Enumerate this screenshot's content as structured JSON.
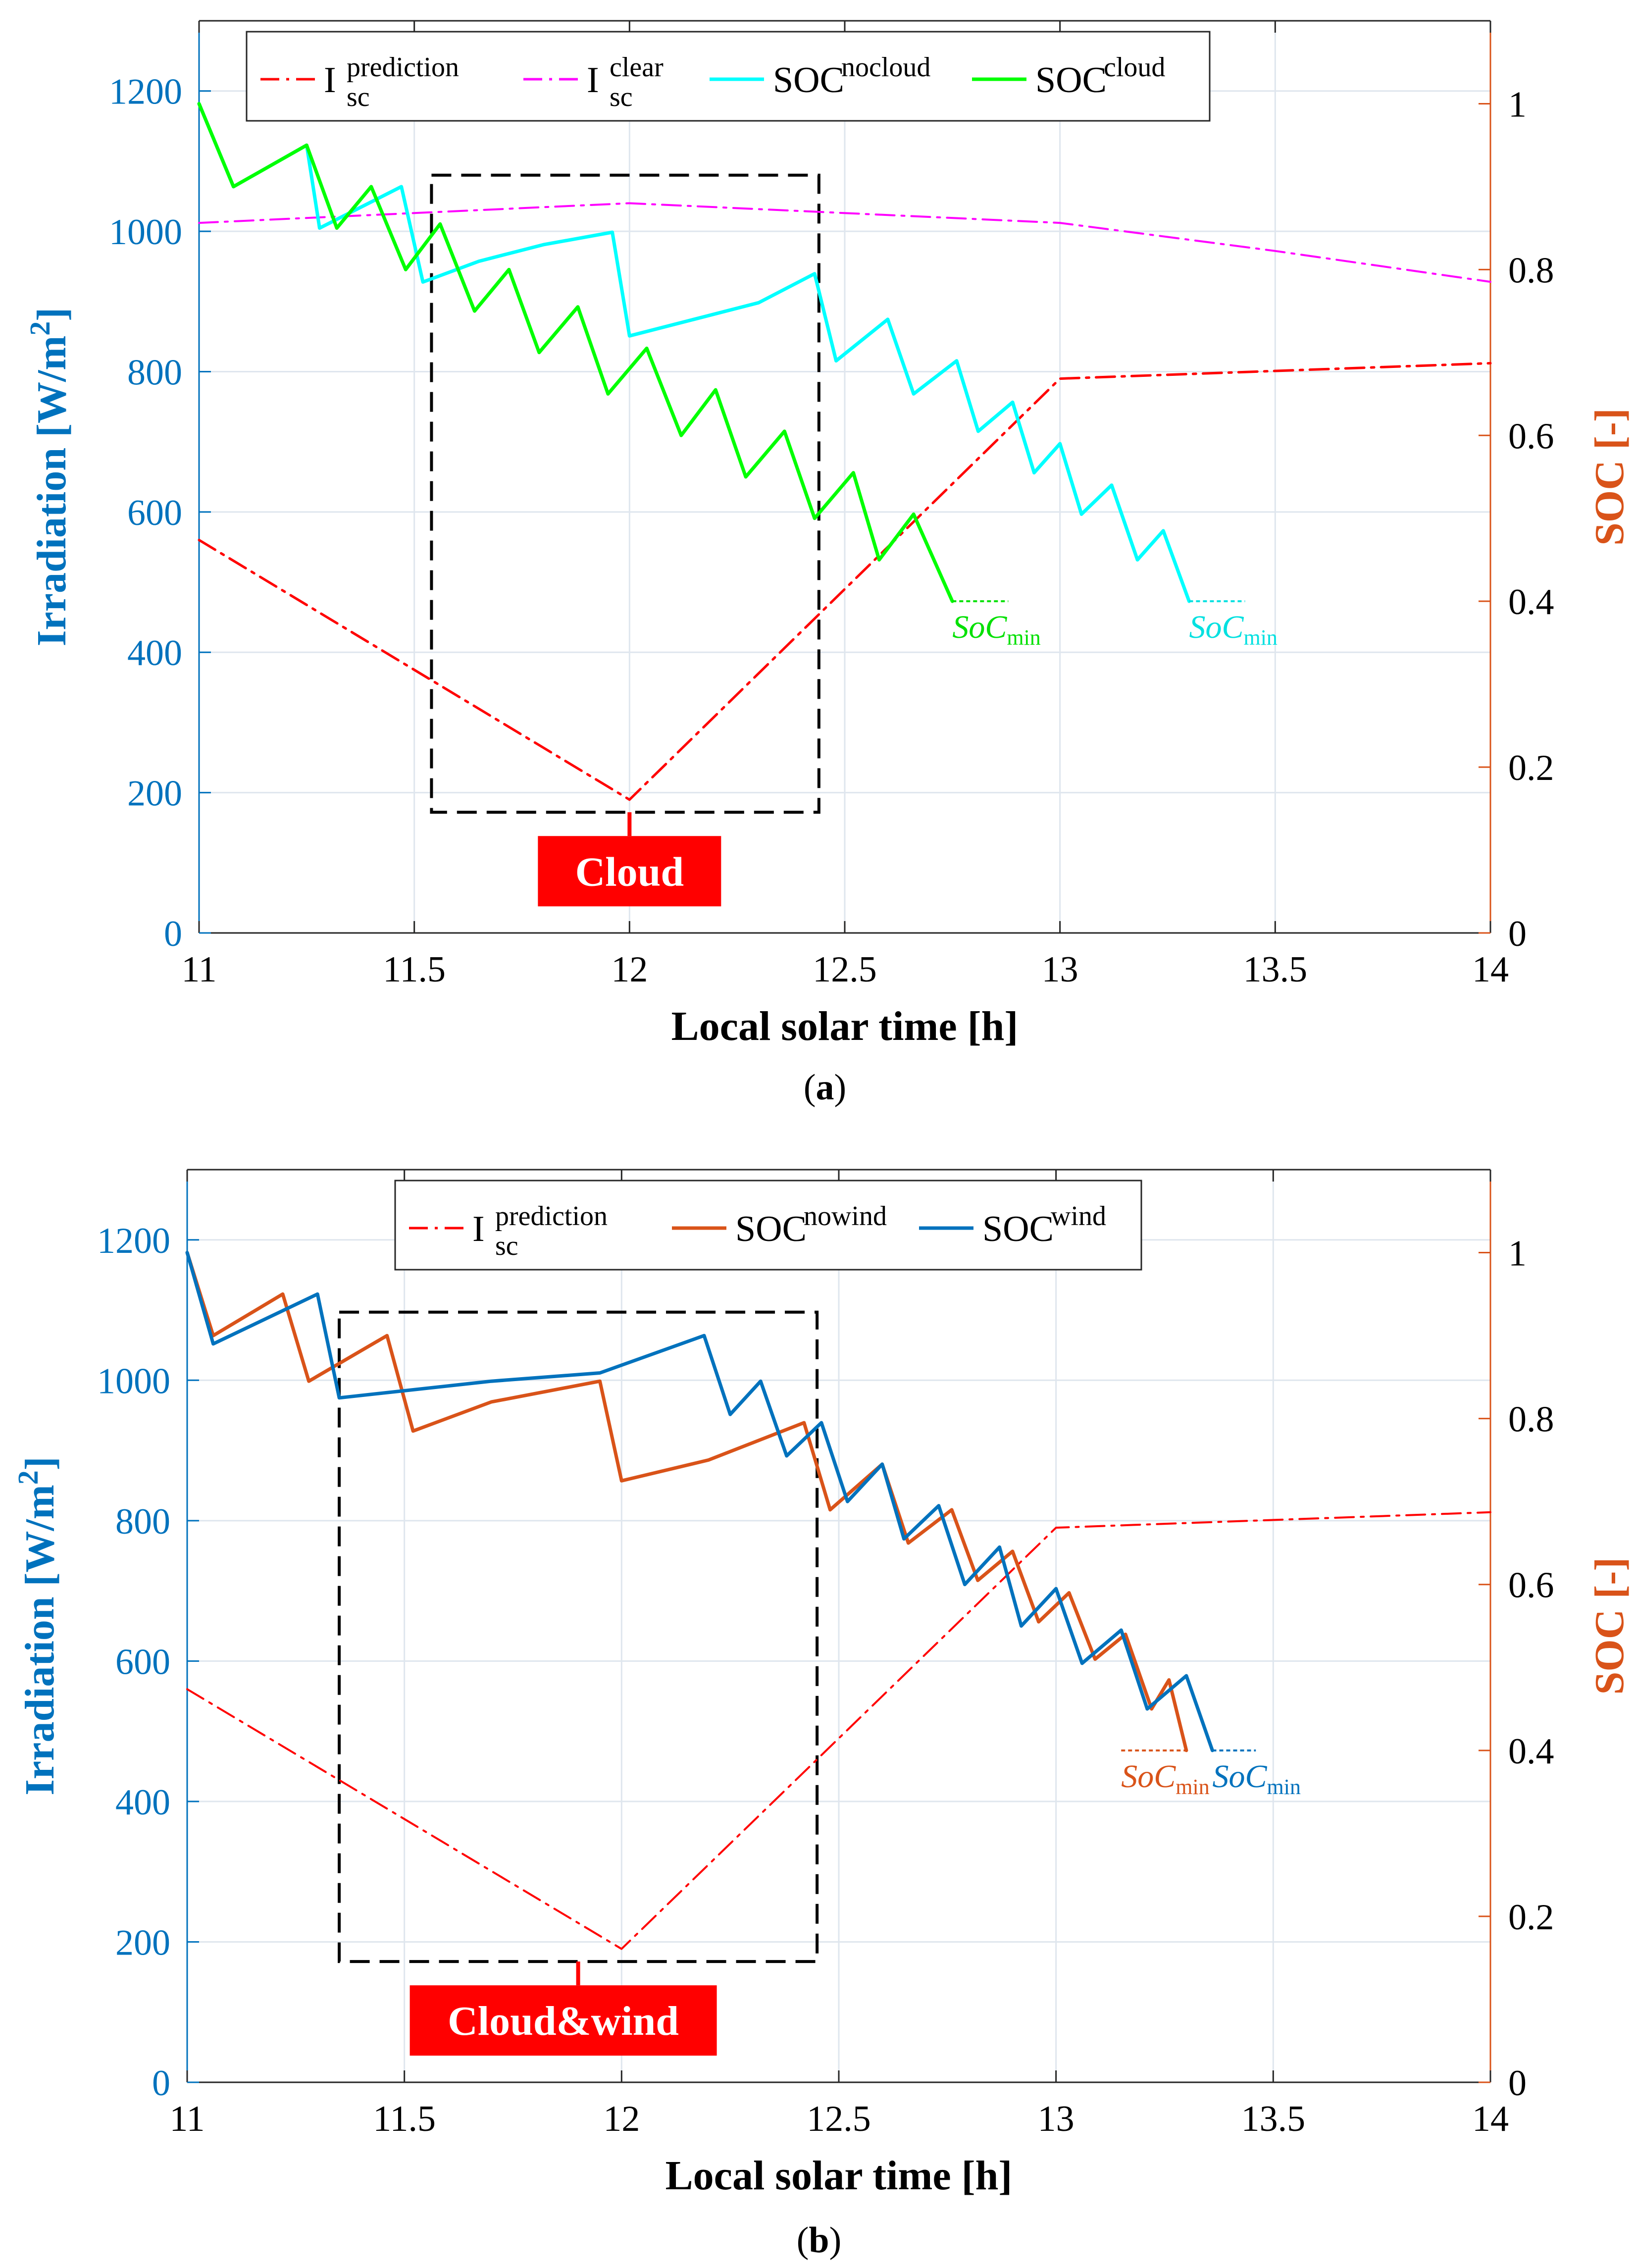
{
  "chart_data": [
    {
      "id": "a",
      "type": "line",
      "caption": "a",
      "xlabel": "Local solar time  [h]",
      "ylabel_left": "Irradiation [W/m",
      "ylabel_left_sup": "2",
      "ylabel_left_tail": "]",
      "ylabel_right": "SOC [-]",
      "xlim": [
        11,
        14
      ],
      "ylim_left": [
        0,
        1300
      ],
      "ylim_right": [
        0,
        1.1
      ],
      "xticks": [
        11,
        11.5,
        12,
        12.5,
        13,
        13.5,
        14
      ],
      "xtick_labels": [
        "11",
        "11.5",
        "12",
        "12.5",
        "13",
        "13.5",
        "14"
      ],
      "yticks_left": [
        0,
        200,
        400,
        600,
        800,
        1000,
        1200
      ],
      "ytick_left_labels": [
        "0",
        "200",
        "400",
        "600",
        "800",
        "1000",
        "1200"
      ],
      "yticks_right": [
        0,
        0.2,
        0.4,
        0.6,
        0.8,
        1
      ],
      "ytick_right_labels": [
        "0",
        "0.2",
        "0.4",
        "0.6",
        "0.8",
        "1"
      ],
      "colors": {
        "left_axis": "#0072BD",
        "right_axis": "#D95319"
      },
      "legend": [
        {
          "base": "I",
          "sup": "prediction",
          "sub": "sc",
          "color": "#ff0000",
          "dash": "dashdot"
        },
        {
          "base": "I",
          "sup": "clear",
          "sub": "sc",
          "color": "#ff00ff",
          "dash": "dashdot"
        },
        {
          "base": "SOC",
          "sup": "nocloud",
          "sub": "",
          "color": "#00ffff",
          "dash": "solid"
        },
        {
          "base": "SOC",
          "sup": "cloud",
          "sub": "",
          "color": "#00ff00",
          "dash": "solid"
        }
      ],
      "series": [
        {
          "name": "I_sc prediction",
          "axis": "left",
          "color": "#ff0000",
          "dash": "dashdot",
          "width": 5,
          "points": [
            [
              11,
              560
            ],
            [
              12,
              190
            ],
            [
              13,
              790
            ],
            [
              14,
              812
            ]
          ]
        },
        {
          "name": "I_sc clear",
          "axis": "left",
          "color": "#ff00ff",
          "dash": "dashdot",
          "width": 4,
          "points": [
            [
              11,
              1012
            ],
            [
              12,
              1040
            ],
            [
              13,
              1012
            ],
            [
              13.5,
              972
            ],
            [
              14,
              928
            ]
          ]
        },
        {
          "name": "SOC nocloud",
          "axis": "right",
          "color": "#00ffff",
          "dash": "solid",
          "width": 7,
          "points": [
            [
              11,
              1.0
            ],
            [
              11.08,
              0.9
            ],
            [
              11.25,
              0.95
            ],
            [
              11.28,
              0.85
            ],
            [
              11.47,
              0.9
            ],
            [
              11.52,
              0.785
            ],
            [
              11.65,
              0.81
            ],
            [
              11.8,
              0.83
            ],
            [
              11.96,
              0.845
            ],
            [
              12.0,
              0.72
            ],
            [
              12.15,
              0.74
            ],
            [
              12.3,
              0.76
            ],
            [
              12.43,
              0.795
            ],
            [
              12.48,
              0.69
            ],
            [
              12.6,
              0.74
            ],
            [
              12.66,
              0.65
            ],
            [
              12.76,
              0.69
            ],
            [
              12.81,
              0.605
            ],
            [
              12.89,
              0.64
            ],
            [
              12.94,
              0.555
            ],
            [
              13.0,
              0.59
            ],
            [
              13.05,
              0.505
            ],
            [
              13.12,
              0.54
            ],
            [
              13.18,
              0.45
            ],
            [
              13.24,
              0.485
            ],
            [
              13.3,
              0.4
            ]
          ]
        },
        {
          "name": "SOC cloud",
          "axis": "right",
          "color": "#00ff00",
          "dash": "solid",
          "width": 7,
          "points": [
            [
              11,
              1.0
            ],
            [
              11.08,
              0.9
            ],
            [
              11.25,
              0.95
            ],
            [
              11.32,
              0.85
            ],
            [
              11.4,
              0.9
            ],
            [
              11.48,
              0.8
            ],
            [
              11.56,
              0.855
            ],
            [
              11.64,
              0.75
            ],
            [
              11.72,
              0.8
            ],
            [
              11.79,
              0.7
            ],
            [
              11.88,
              0.755
            ],
            [
              11.95,
              0.65
            ],
            [
              12.04,
              0.705
            ],
            [
              12.12,
              0.6
            ],
            [
              12.2,
              0.655
            ],
            [
              12.27,
              0.55
            ],
            [
              12.36,
              0.605
            ],
            [
              12.43,
              0.5
            ],
            [
              12.52,
              0.555
            ],
            [
              12.58,
              0.45
            ],
            [
              12.66,
              0.505
            ],
            [
              12.75,
              0.4
            ]
          ]
        }
      ],
      "soc_min": [
        {
          "label": "SoC",
          "sub": "min",
          "color": "#00e000",
          "x1": 12.75,
          "x2": 12.88,
          "y": 0.4
        },
        {
          "label": "SoC",
          "sub": "min",
          "color": "#00e0e0",
          "x1": 13.3,
          "x2": 13.43,
          "y": 0.4
        }
      ],
      "box": {
        "x1": 11.54,
        "x2": 12.44,
        "y1_left": 1080,
        "y2_left": 172
      },
      "annotation": {
        "text": "Cloud",
        "x": 12.0,
        "y_left": 172,
        "bg": "#ff0000"
      }
    },
    {
      "id": "b",
      "type": "line",
      "caption": "b",
      "xlabel": "Local solar time  [h]",
      "ylabel_left": "Irradiation [W/m",
      "ylabel_left_sup": "2",
      "ylabel_left_tail": "]",
      "ylabel_right": "SOC [-]",
      "xlim": [
        11,
        14
      ],
      "ylim_left": [
        0,
        1300
      ],
      "ylim_right": [
        0,
        1.1
      ],
      "xticks": [
        11,
        11.5,
        12,
        12.5,
        13,
        13.5,
        14
      ],
      "xtick_labels": [
        "11",
        "11.5",
        "12",
        "12.5",
        "13",
        "13.5",
        "14"
      ],
      "yticks_left": [
        0,
        200,
        400,
        600,
        800,
        1000,
        1200
      ],
      "ytick_left_labels": [
        "0",
        "200",
        "400",
        "600",
        "800",
        "1000",
        "1200"
      ],
      "yticks_right": [
        0,
        0.2,
        0.4,
        0.6,
        0.8,
        1
      ],
      "ytick_right_labels": [
        "0",
        "0.2",
        "0.4",
        "0.6",
        "0.8",
        "1"
      ],
      "colors": {
        "left_axis": "#0072BD",
        "right_axis": "#D95319"
      },
      "legend": [
        {
          "base": "I",
          "sup": "prediction",
          "sub": "sc",
          "color": "#ff0000",
          "dash": "dashdot"
        },
        {
          "base": "SOC",
          "sup": "nowind",
          "sub": "",
          "color": "#D95319",
          "dash": "solid"
        },
        {
          "base": "SOC",
          "sup": "wind",
          "sub": "",
          "color": "#0072BD",
          "dash": "solid"
        }
      ],
      "series": [
        {
          "name": "I_sc prediction",
          "axis": "left",
          "color": "#ff0000",
          "dash": "dashdot",
          "width": 4,
          "points": [
            [
              11,
              560
            ],
            [
              12,
              190
            ],
            [
              13,
              790
            ],
            [
              14,
              812
            ]
          ]
        },
        {
          "name": "SOC nowind",
          "axis": "right",
          "color": "#D95319",
          "dash": "solid",
          "width": 7,
          "points": [
            [
              11,
              1.0
            ],
            [
              11.06,
              0.9
            ],
            [
              11.22,
              0.95
            ],
            [
              11.28,
              0.845
            ],
            [
              11.46,
              0.9
            ],
            [
              11.52,
              0.785
            ],
            [
              11.7,
              0.82
            ],
            [
              11.95,
              0.845
            ],
            [
              12.0,
              0.725
            ],
            [
              12.2,
              0.75
            ],
            [
              12.42,
              0.795
            ],
            [
              12.48,
              0.69
            ],
            [
              12.6,
              0.745
            ],
            [
              12.66,
              0.65
            ],
            [
              12.76,
              0.69
            ],
            [
              12.82,
              0.605
            ],
            [
              12.9,
              0.64
            ],
            [
              12.96,
              0.555
            ],
            [
              13.03,
              0.59
            ],
            [
              13.09,
              0.51
            ],
            [
              13.16,
              0.54
            ],
            [
              13.22,
              0.45
            ],
            [
              13.26,
              0.485
            ],
            [
              13.3,
              0.4
            ]
          ]
        },
        {
          "name": "SOC wind",
          "axis": "right",
          "color": "#0072BD",
          "dash": "solid",
          "width": 7,
          "points": [
            [
              11,
              1.0
            ],
            [
              11.06,
              0.89
            ],
            [
              11.3,
              0.95
            ],
            [
              11.35,
              0.825
            ],
            [
              11.7,
              0.845
            ],
            [
              11.95,
              0.855
            ],
            [
              12.19,
              0.9
            ],
            [
              12.25,
              0.805
            ],
            [
              12.32,
              0.845
            ],
            [
              12.38,
              0.755
            ],
            [
              12.46,
              0.795
            ],
            [
              12.52,
              0.7
            ],
            [
              12.6,
              0.745
            ],
            [
              12.65,
              0.655
            ],
            [
              12.73,
              0.695
            ],
            [
              12.79,
              0.6
            ],
            [
              12.87,
              0.645
            ],
            [
              12.92,
              0.55
            ],
            [
              13.0,
              0.595
            ],
            [
              13.06,
              0.505
            ],
            [
              13.15,
              0.545
            ],
            [
              13.21,
              0.45
            ],
            [
              13.3,
              0.49
            ],
            [
              13.36,
              0.4
            ]
          ]
        }
      ],
      "soc_min": [
        {
          "label": "SoC",
          "sub": "min",
          "color": "#D95319",
          "x1": 13.15,
          "x2": 13.3,
          "y": 0.4
        },
        {
          "label": "SoC",
          "sub": "min",
          "color": "#0072BD",
          "x1": 13.36,
          "x2": 13.46,
          "y": 0.4
        }
      ],
      "box": {
        "x1": 11.35,
        "x2": 12.45,
        "y1_left": 1097,
        "y2_left": 172
      },
      "annotation": {
        "text": "Cloud&wind",
        "x": 11.9,
        "y_left": 172,
        "bg": "#ff0000"
      }
    }
  ]
}
